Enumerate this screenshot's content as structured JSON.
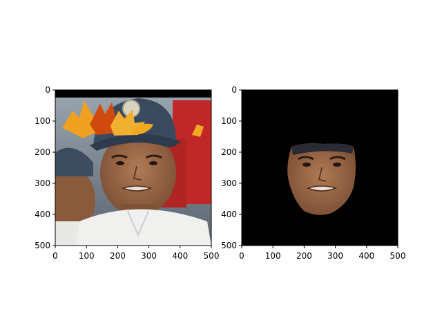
{
  "figure": {
    "background": "#ffffff",
    "axes_color": "#000000"
  },
  "panels": [
    {
      "name": "left-image-panel",
      "content": "original-photo-with-leaf-overlay",
      "xlim": [
        0,
        500
      ],
      "ylim": [
        500,
        0
      ],
      "xticks": [
        0,
        100,
        200,
        300,
        400,
        500
      ],
      "yticks": [
        0,
        100,
        200,
        300,
        400,
        500
      ],
      "xtick_labels": [
        "0",
        "100",
        "200",
        "300",
        "400",
        "500"
      ],
      "ytick_labels": [
        "0",
        "100",
        "200",
        "300",
        "400",
        "500"
      ]
    },
    {
      "name": "right-image-panel",
      "content": "segmented-face-on-black",
      "xlim": [
        0,
        500
      ],
      "ylim": [
        500,
        0
      ],
      "xticks": [
        0,
        100,
        200,
        300,
        400,
        500
      ],
      "yticks": [
        0,
        100,
        200,
        300,
        400,
        500
      ],
      "xtick_labels": [
        "0",
        "100",
        "200",
        "300",
        "400",
        "500"
      ],
      "ytick_labels": [
        "0",
        "100",
        "200",
        "300",
        "400",
        "500"
      ]
    }
  ],
  "colors": {
    "photo_bg_top": "#8a9aaa",
    "cap": "#3a4a5e",
    "skin": "#9a6a4a",
    "shirt": "#f0f0ee",
    "leaf_orange": "#f0a020",
    "leaf_red": "#d04a10",
    "crowd_red": "#c02828",
    "mask_bg": "#000000"
  }
}
